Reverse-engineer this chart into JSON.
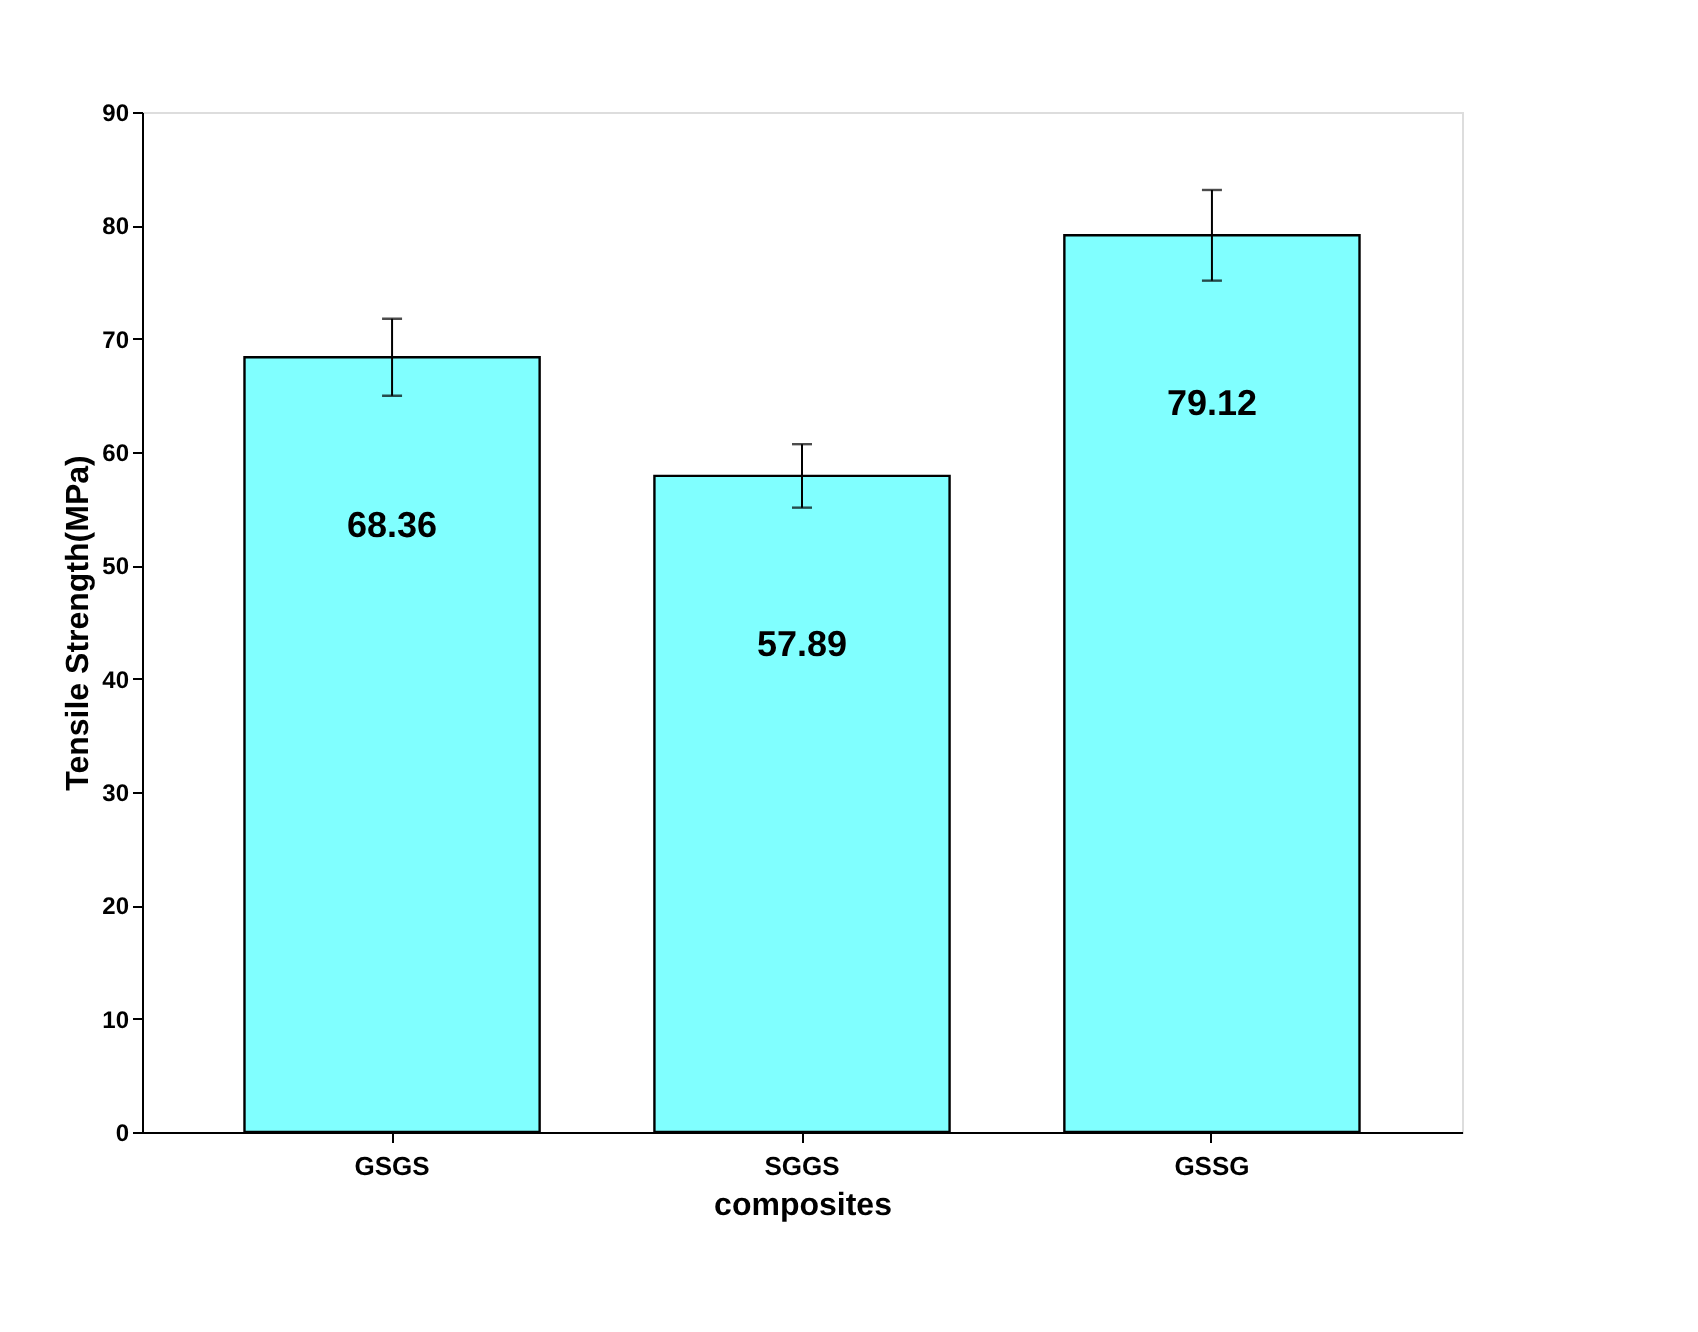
{
  "chart_data": {
    "type": "bar",
    "xlabel": "composites",
    "ylabel": "Tensile Strength(MPa)",
    "categories": [
      "GSGS",
      "SGGS",
      "GSSG"
    ],
    "values": [
      68.36,
      57.89,
      79.12
    ],
    "errors": [
      3.4,
      2.8,
      4.0
    ],
    "color": "#80ffff",
    "ylim": [
      0,
      90
    ],
    "yticks": [
      0,
      10,
      20,
      30,
      40,
      50,
      60,
      70,
      80,
      90
    ],
    "grid": false,
    "data_labels": true
  }
}
